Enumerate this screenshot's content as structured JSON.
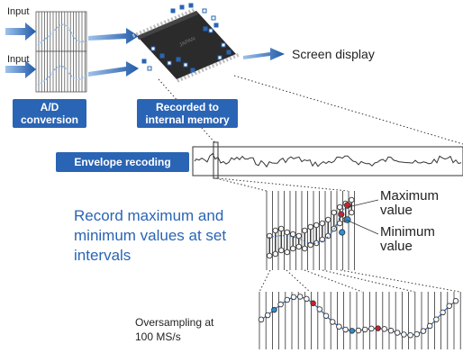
{
  "inputs": [
    "Input",
    "Input"
  ],
  "ad_label": [
    "A/D",
    "conversion"
  ],
  "memory_label": [
    "Recorded to",
    "internal memory"
  ],
  "screen_display": "Screen display",
  "envelope_label": "Envelope recoding",
  "record_text": [
    "Record maximum and",
    "minimum values at set",
    "intervals"
  ],
  "max_label": [
    "Maximum",
    "value"
  ],
  "min_label": [
    "Minimum",
    "value"
  ],
  "oversampling_label": [
    "Oversampling at",
    "100 MS/s"
  ],
  "colors": {
    "accent_blue": "#2a64b4",
    "max_dot": "#d0202a",
    "min_dot": "#2a8fd8",
    "chip": "#2b2b2b"
  }
}
